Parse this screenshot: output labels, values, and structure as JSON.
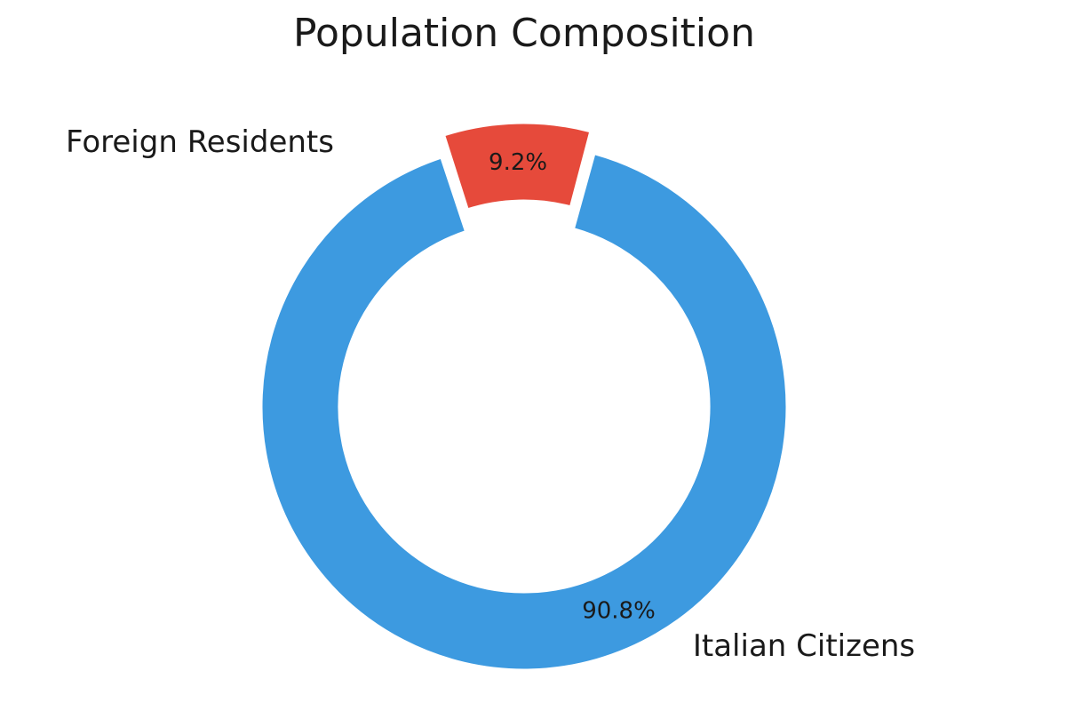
{
  "chart_data": {
    "type": "pie",
    "variant": "donut",
    "title": "Population Composition",
    "slices": [
      {
        "label": "Foreign Residents",
        "value": 9.2,
        "display": "9.2%",
        "color": "#e64a3b",
        "exploded": true
      },
      {
        "label": "Italian Citizens",
        "value": 90.8,
        "display": "90.8%",
        "color": "#3d9ae0",
        "exploded": false
      }
    ],
    "legend": "none",
    "labels": "outside-with-inner-percent"
  }
}
